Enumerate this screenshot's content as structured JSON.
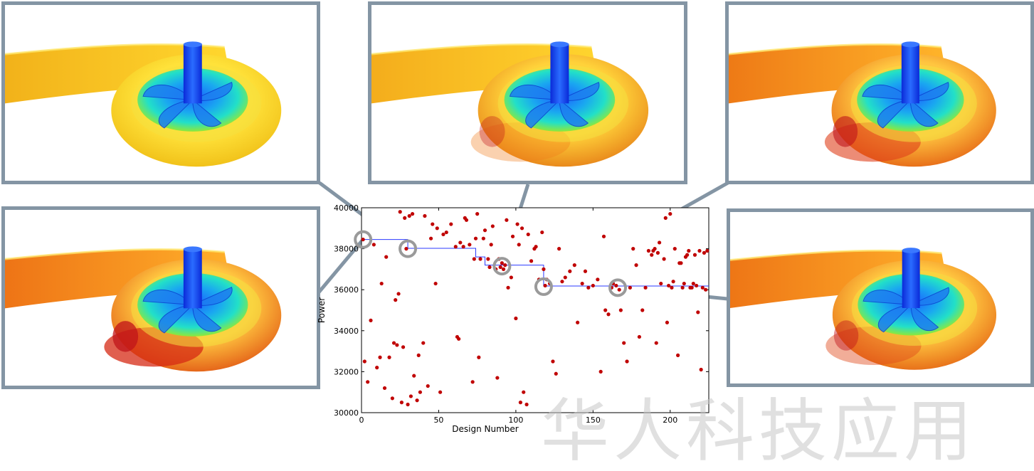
{
  "colors": {
    "frame": "#8495a4",
    "marker": "#c00000",
    "best_line": "#2b3aff",
    "watermark": "#c7c7c7"
  },
  "watermark_text": "华人科技应用",
  "panels": [
    {
      "name": "impeller-design-a",
      "icon": "pump-cfd-render"
    },
    {
      "name": "impeller-design-b",
      "icon": "pump-cfd-render"
    },
    {
      "name": "impeller-design-c",
      "icon": "pump-cfd-render"
    },
    {
      "name": "impeller-design-d",
      "icon": "pump-cfd-render"
    },
    {
      "name": "impeller-design-e",
      "icon": "pump-cfd-render"
    }
  ],
  "chart_data": {
    "type": "scatter",
    "title": "",
    "xlabel": "Design Number",
    "ylabel": "Power",
    "xlim": [
      0,
      225
    ],
    "ylim": [
      30000,
      40000
    ],
    "xticks": [
      0,
      50,
      100,
      150,
      200
    ],
    "yticks": [
      30000,
      32000,
      34000,
      36000,
      38000,
      40000
    ],
    "grid": false,
    "series": [
      {
        "points": [
          [
            1,
            38450
          ],
          [
            2,
            32500
          ],
          [
            4,
            31500
          ],
          [
            6,
            34500
          ],
          [
            8,
            38200
          ],
          [
            10,
            32200
          ],
          [
            12,
            32700
          ],
          [
            13,
            36300
          ],
          [
            15,
            31200
          ],
          [
            16,
            37600
          ],
          [
            18,
            32700
          ],
          [
            20,
            30700
          ],
          [
            21,
            33400
          ],
          [
            22,
            35500
          ],
          [
            23,
            33300
          ],
          [
            24,
            35800
          ],
          [
            25,
            39800
          ],
          [
            26,
            30500
          ],
          [
            27,
            33200
          ],
          [
            28,
            39500
          ],
          [
            29,
            38000
          ],
          [
            30,
            30400
          ],
          [
            31,
            39600
          ],
          [
            32,
            30800
          ],
          [
            33,
            39700
          ],
          [
            34,
            31800
          ],
          [
            36,
            30600
          ],
          [
            37,
            32800
          ],
          [
            38,
            31000
          ],
          [
            40,
            33400
          ],
          [
            41,
            39600
          ],
          [
            43,
            31300
          ],
          [
            45,
            38500
          ],
          [
            46,
            39200
          ],
          [
            48,
            36300
          ],
          [
            49,
            39000
          ],
          [
            51,
            31000
          ],
          [
            53,
            38700
          ],
          [
            55,
            38800
          ],
          [
            58,
            39200
          ],
          [
            61,
            38100
          ],
          [
            62,
            33700
          ],
          [
            63,
            33600
          ],
          [
            64,
            38300
          ],
          [
            66,
            38100
          ],
          [
            67,
            39500
          ],
          [
            68,
            39400
          ],
          [
            70,
            38200
          ],
          [
            72,
            31500
          ],
          [
            73,
            37500
          ],
          [
            74,
            38500
          ],
          [
            75,
            39700
          ],
          [
            76,
            32700
          ],
          [
            77,
            37500
          ],
          [
            79,
            38500
          ],
          [
            80,
            38900
          ],
          [
            82,
            37500
          ],
          [
            83,
            37100
          ],
          [
            84,
            38200
          ],
          [
            85,
            39100
          ],
          [
            87,
            37000
          ],
          [
            88,
            31700
          ],
          [
            89,
            37500
          ],
          [
            90,
            37100
          ],
          [
            91,
            37300
          ],
          [
            92,
            37000
          ],
          [
            93,
            37200
          ],
          [
            94,
            39400
          ],
          [
            95,
            36100
          ],
          [
            97,
            36600
          ],
          [
            98,
            38600
          ],
          [
            100,
            34600
          ],
          [
            101,
            39200
          ],
          [
            102,
            38200
          ],
          [
            103,
            30500
          ],
          [
            104,
            39000
          ],
          [
            105,
            31000
          ],
          [
            107,
            30400
          ],
          [
            108,
            38700
          ],
          [
            110,
            37400
          ],
          [
            112,
            38000
          ],
          [
            113,
            38100
          ],
          [
            115,
            36500
          ],
          [
            117,
            38800
          ],
          [
            118,
            37000
          ],
          [
            119,
            36200
          ],
          [
            120,
            36500
          ],
          [
            122,
            36300
          ],
          [
            124,
            32500
          ],
          [
            126,
            31900
          ],
          [
            128,
            38000
          ],
          [
            130,
            36400
          ],
          [
            132,
            36600
          ],
          [
            135,
            36900
          ],
          [
            138,
            37200
          ],
          [
            140,
            34400
          ],
          [
            143,
            36300
          ],
          [
            145,
            36900
          ],
          [
            147,
            36100
          ],
          [
            150,
            36200
          ],
          [
            153,
            36500
          ],
          [
            155,
            32000
          ],
          [
            157,
            38600
          ],
          [
            158,
            35000
          ],
          [
            160,
            34800
          ],
          [
            162,
            36100
          ],
          [
            163,
            36300
          ],
          [
            165,
            36200
          ],
          [
            167,
            36000
          ],
          [
            168,
            35000
          ],
          [
            170,
            33400
          ],
          [
            172,
            32500
          ],
          [
            174,
            36100
          ],
          [
            176,
            38000
          ],
          [
            178,
            37200
          ],
          [
            180,
            33700
          ],
          [
            182,
            35000
          ],
          [
            184,
            36100
          ],
          [
            186,
            37900
          ],
          [
            188,
            37700
          ],
          [
            189,
            37900
          ],
          [
            190,
            38000
          ],
          [
            191,
            33400
          ],
          [
            192,
            37800
          ],
          [
            193,
            38300
          ],
          [
            194,
            36300
          ],
          [
            196,
            37500
          ],
          [
            197,
            39500
          ],
          [
            198,
            34400
          ],
          [
            199,
            36200
          ],
          [
            200,
            39700
          ],
          [
            201,
            36100
          ],
          [
            202,
            36400
          ],
          [
            203,
            38000
          ],
          [
            205,
            32800
          ],
          [
            206,
            37300
          ],
          [
            207,
            37300
          ],
          [
            208,
            36100
          ],
          [
            209,
            36300
          ],
          [
            210,
            37600
          ],
          [
            211,
            37700
          ],
          [
            212,
            37900
          ],
          [
            213,
            36100
          ],
          [
            214,
            36100
          ],
          [
            215,
            36300
          ],
          [
            216,
            37700
          ],
          [
            217,
            36200
          ],
          [
            218,
            34900
          ],
          [
            219,
            37900
          ],
          [
            220,
            32100
          ],
          [
            221,
            36100
          ],
          [
            222,
            37800
          ],
          [
            223,
            36000
          ],
          [
            224,
            37900
          ]
        ]
      }
    ],
    "best_so_far_step": [
      [
        0,
        38450
      ],
      [
        30,
        38450
      ],
      [
        30,
        38020
      ],
      [
        74,
        38020
      ],
      [
        74,
        37600
      ],
      [
        80,
        37600
      ],
      [
        80,
        37200
      ],
      [
        118,
        37200
      ],
      [
        118,
        36180
      ],
      [
        225,
        36180
      ]
    ],
    "highlighted_designs": [
      [
        1,
        38450
      ],
      [
        30,
        38000
      ],
      [
        91,
        37150
      ],
      [
        118,
        36150
      ],
      [
        166,
        36100
      ]
    ]
  }
}
